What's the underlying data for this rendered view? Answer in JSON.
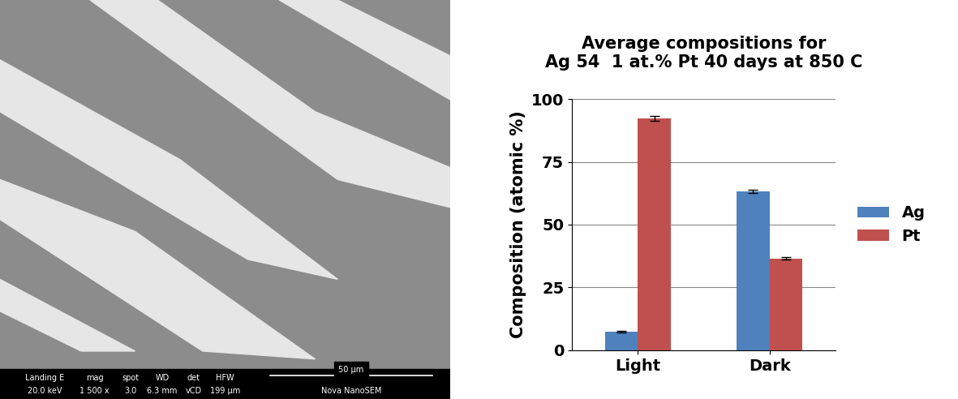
{
  "chart_data": {
    "type": "bar",
    "title": "Average compositions for\nAg 54  1 at.% Pt 40 days at 850 C",
    "y_label": "Composition (atomic %)",
    "categories": [
      "Light",
      "Dark"
    ],
    "series": [
      {
        "name": "Ag",
        "color": "#4f81bd",
        "values": [
          7.5,
          63.3
        ],
        "errors": [
          0.3,
          0.7
        ]
      },
      {
        "name": "Pt",
        "color": "#c0504d",
        "values": [
          92.3,
          36.5
        ],
        "errors": [
          1.0,
          0.5
        ]
      }
    ],
    "ylim": [
      0,
      100
    ],
    "yticks": [
      0,
      25,
      50,
      75,
      100
    ],
    "grid": true,
    "legend": "right"
  },
  "micrograph": {
    "info_bar": {
      "headers": [
        "Landing E",
        "mag",
        "spot",
        "WD",
        "det",
        "HFW"
      ],
      "values": [
        "20.0 keV",
        "1 500 x",
        "3.0",
        "6.3 mm",
        "vCD",
        "199 µm"
      ],
      "scale_bar": "50 µm",
      "instrument": "Nova NanoSEM"
    }
  }
}
